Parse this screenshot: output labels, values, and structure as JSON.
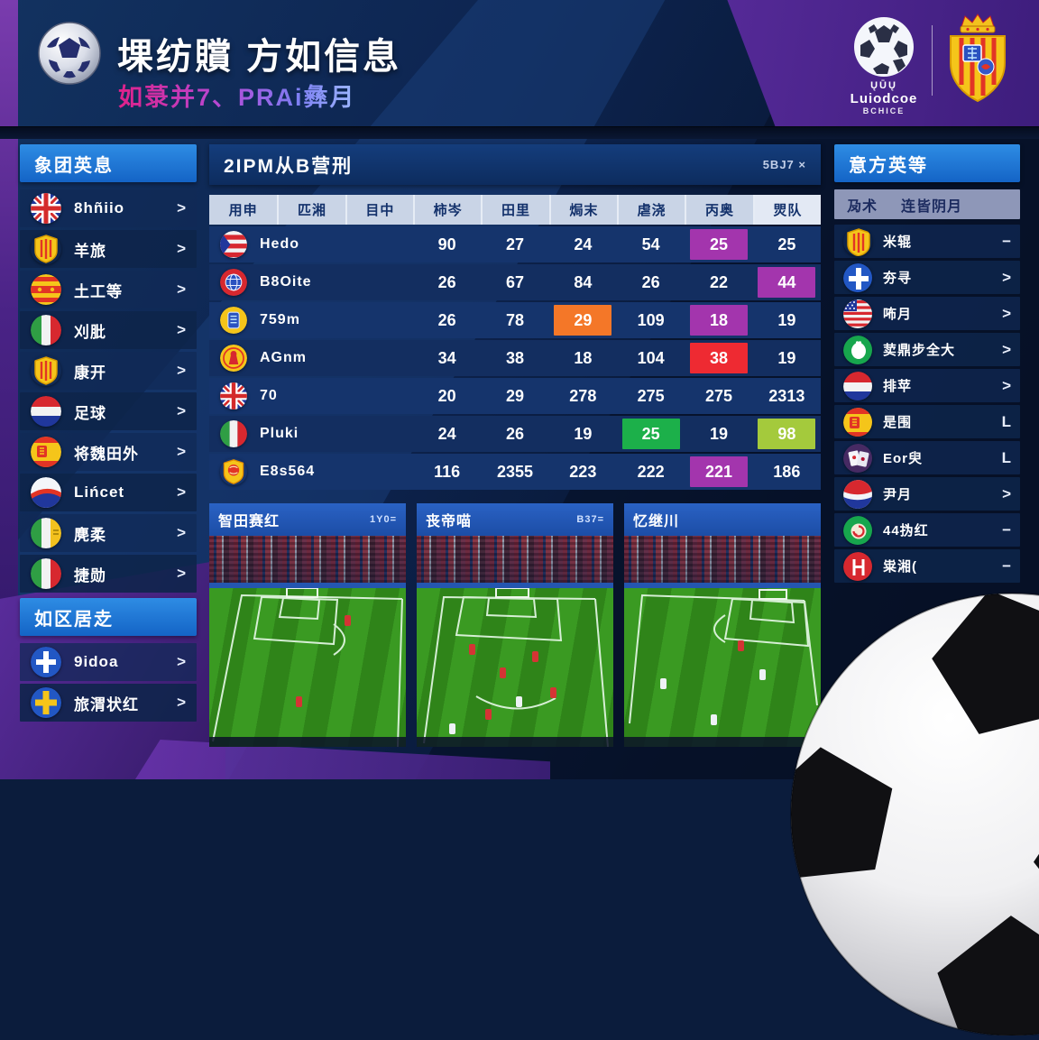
{
  "colors": {
    "accent_blue": "#1a6fd4",
    "subtitle_pink": "#d9309f",
    "panel_navy": "#15346c",
    "table_head_bg": "#c9d4e6",
    "magenta": "#a335ad",
    "orange": "#f47728",
    "red": "#ee2a32",
    "green": "#1cb04a",
    "lime": "#a4ca3c",
    "purple": "#5b2d9e"
  },
  "header": {
    "title": "堁纺贘 方如信息",
    "subtitle": "如菉并7、PRAi彝月",
    "logo": "soccer-ball-logo",
    "league": {
      "line1": "ŲŪŲ",
      "name": "Luiodcoe",
      "sub": "BCHICE"
    },
    "crest": "crowned-crest-logo"
  },
  "sidebar_left": {
    "section1": {
      "title": "象团英息",
      "items": [
        {
          "icon": "flag-uk",
          "label": "8hñiio",
          "chevron": ">"
        },
        {
          "icon": "crest-stripes",
          "label": "羊旅",
          "chevron": ">"
        },
        {
          "icon": "flag-spain-ball",
          "label": "土工等",
          "chevron": ">"
        },
        {
          "icon": "flag-italy",
          "label": "刈肶",
          "chevron": ">"
        },
        {
          "icon": "crest-stripes",
          "label": "康开",
          "chevron": ">"
        },
        {
          "icon": "flag-netherlands",
          "label": "足球",
          "chevron": ">"
        },
        {
          "icon": "flag-spain-emblem",
          "label": "将魏田外",
          "chevron": ">"
        },
        {
          "icon": "flag-swoosh",
          "label": "Lińcet",
          "chevron": ">"
        },
        {
          "icon": "flag-ireland",
          "label": "麂柔",
          "chevron": ">"
        },
        {
          "icon": "flag-italy",
          "label": "捷勋",
          "chevron": ">"
        }
      ]
    },
    "section2": {
      "title": "如区居赱",
      "items": [
        {
          "icon": "flag-finland",
          "label": "9idoa",
          "chevron": ">"
        },
        {
          "icon": "flag-sweden",
          "label": "旅渭状红",
          "chevron": ">"
        }
      ]
    }
  },
  "table": {
    "title": "2IPM从B营刑",
    "corner": "5BJ7 ×",
    "columns": [
      "用申",
      "匹湘",
      "目中",
      "柿岑",
      "田里",
      "焗末",
      "虐浇",
      "丙奥",
      "焸队"
    ],
    "rows": [
      {
        "icon": "flag-cuba",
        "name": "Hedo",
        "values": [
          {
            "v": "90"
          },
          {
            "v": "27"
          },
          {
            "v": "24"
          },
          {
            "v": "54"
          },
          {
            "v": "25",
            "hl": "magenta"
          },
          {
            "v": "25"
          }
        ]
      },
      {
        "icon": "flag-globe",
        "name": "B8Oite",
        "values": [
          {
            "v": "26"
          },
          {
            "v": "67"
          },
          {
            "v": "84"
          },
          {
            "v": "26"
          },
          {
            "v": "22"
          },
          {
            "v": "44",
            "hl": "magenta"
          }
        ]
      },
      {
        "icon": "flag-yellow-blue",
        "name": "759m",
        "values": [
          {
            "v": "26"
          },
          {
            "v": "78"
          },
          {
            "v": "29",
            "hl": "orange"
          },
          {
            "v": "109"
          },
          {
            "v": "18",
            "hl": "magenta"
          },
          {
            "v": "19"
          }
        ]
      },
      {
        "icon": "flag-yellow-red",
        "name": "AGnm",
        "values": [
          {
            "v": "34"
          },
          {
            "v": "38"
          },
          {
            "v": "18"
          },
          {
            "v": "104"
          },
          {
            "v": "38",
            "hl": "red"
          },
          {
            "v": "19"
          }
        ]
      },
      {
        "icon": "flag-uk",
        "name": "70",
        "values": [
          {
            "v": "20"
          },
          {
            "v": "29"
          },
          {
            "v": "278"
          },
          {
            "v": "275"
          },
          {
            "v": "275"
          },
          {
            "v": "2313"
          }
        ]
      },
      {
        "icon": "flag-italy",
        "name": "Pluki",
        "values": [
          {
            "v": "24"
          },
          {
            "v": "26"
          },
          {
            "v": "19"
          },
          {
            "v": "25",
            "hl": "green"
          },
          {
            "v": "19"
          },
          {
            "v": "98",
            "hl": "lime"
          }
        ]
      },
      {
        "icon": "crest-ball",
        "name": "E8s564",
        "values": [
          {
            "v": "116"
          },
          {
            "v": "2355"
          },
          {
            "v": "223"
          },
          {
            "v": "222"
          },
          {
            "v": "221",
            "hl": "magenta"
          },
          {
            "v": "186"
          }
        ]
      }
    ]
  },
  "video_panels": [
    {
      "title": "智田赛红",
      "badge": "1Y0="
    },
    {
      "title": "丧帝喵",
      "badge": "B37="
    },
    {
      "title": "忆继川",
      "badge": ""
    }
  ],
  "sidebar_right": {
    "title": "意方英等",
    "sub_left": "夃术",
    "sub_right": "连皆阴月",
    "items": [
      {
        "icon": "crest-stripes",
        "label": "米辊",
        "chevron": "−"
      },
      {
        "icon": "flag-finland",
        "label": "夯寻",
        "chevron": ">"
      },
      {
        "icon": "flag-us",
        "label": "咘月",
        "chevron": ">"
      },
      {
        "icon": "icon-green-pear",
        "label": "荬鼎步全大",
        "chevron": ">"
      },
      {
        "icon": "flag-netherlands",
        "label": "排苹",
        "chevron": ">"
      },
      {
        "icon": "flag-spain-emblem",
        "label": "是围",
        "chevron": "L"
      },
      {
        "icon": "icon-cards",
        "label": "Eor臾",
        "chevron": "L"
      },
      {
        "icon": "icon-pepsi",
        "label": "尹月",
        "chevron": ">"
      },
      {
        "icon": "icon-spiral",
        "label": "44㧑红",
        "chevron": "−"
      },
      {
        "icon": "icon-red-mark",
        "label": "粜湘(",
        "chevron": "−"
      }
    ]
  }
}
